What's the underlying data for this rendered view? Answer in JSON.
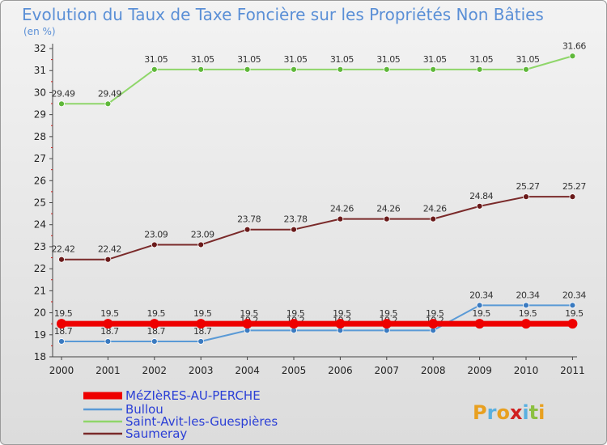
{
  "chart_data": {
    "type": "line",
    "title": "Evolution du Taux de Taxe Foncière sur les Propriétés Non Bâties",
    "unit_label": "(en %)",
    "x": [
      "2000",
      "2001",
      "2002",
      "2003",
      "2004",
      "2005",
      "2006",
      "2007",
      "2008",
      "2009",
      "2010",
      "2011"
    ],
    "ylim": [
      18,
      32
    ],
    "yticks": [
      18,
      19,
      20,
      21,
      22,
      23,
      24,
      25,
      26,
      27,
      28,
      29,
      30,
      31,
      32
    ],
    "grid": false,
    "legend_position": "bottom-left",
    "series": [
      {
        "name": "Saint-Avit-les-Guespières",
        "color": "#8fd66a",
        "marker": "#5fb83a",
        "values": [
          29.49,
          29.49,
          31.05,
          31.05,
          31.05,
          31.05,
          31.05,
          31.05,
          31.05,
          31.05,
          31.05,
          31.66
        ],
        "labels": [
          "29.49",
          "29.49",
          "31.05",
          "31.05",
          "31.05",
          "31.05",
          "31.05",
          "31.05",
          "31.05",
          "31.05",
          "31.05",
          "31.66"
        ]
      },
      {
        "name": "Saumeray",
        "color": "#7a2a2a",
        "marker": "#6a1a1a",
        "values": [
          22.42,
          22.42,
          23.09,
          23.09,
          23.78,
          23.78,
          24.26,
          24.26,
          24.26,
          24.84,
          25.27,
          25.27
        ],
        "labels": [
          "22.42",
          "22.42",
          "23.09",
          "23.09",
          "23.78",
          "23.78",
          "24.26",
          "24.26",
          "24.26",
          "24.84",
          "25.27",
          "25.27"
        ]
      },
      {
        "name": "Bullou",
        "color": "#5a9ad6",
        "marker": "#3a7ac0",
        "values": [
          18.7,
          18.7,
          18.7,
          18.7,
          19.2,
          19.2,
          19.2,
          19.2,
          19.2,
          20.34,
          20.34,
          20.34
        ],
        "labels": [
          "18.7",
          "18.7",
          "18.7",
          "18.7",
          "19.2",
          "19.2",
          "19.2",
          "19.2",
          "19.2",
          "20.34",
          "20.34",
          "20.34"
        ]
      },
      {
        "name": "MéZIèRES-AU-PERCHE",
        "color": "#ee0000",
        "marker": "#ee0000",
        "thick": true,
        "values": [
          19.5,
          19.5,
          19.5,
          19.5,
          19.5,
          19.5,
          19.5,
          19.5,
          19.5,
          19.5,
          19.5,
          19.5
        ],
        "labels": [
          "19.5",
          "19.5",
          "19.5",
          "19.5",
          "19.5",
          "19.5",
          "19.5",
          "19.5",
          "19.5",
          "19.5",
          "19.5",
          "19.5"
        ]
      }
    ],
    "legend": [
      "MéZIèRES-AU-PERCHE",
      "Bullou",
      "Saint-Avit-les-Guespières",
      "Saumeray"
    ]
  },
  "brand": {
    "text": "Proxiti",
    "letters": [
      "P",
      "r",
      "o",
      "x",
      "i",
      "t",
      "i"
    ],
    "colors": [
      "#e8a020",
      "#5ab0e0",
      "#e8a020",
      "#d02020",
      "#5ab0e0",
      "#8cc040",
      "#e8a020"
    ]
  }
}
